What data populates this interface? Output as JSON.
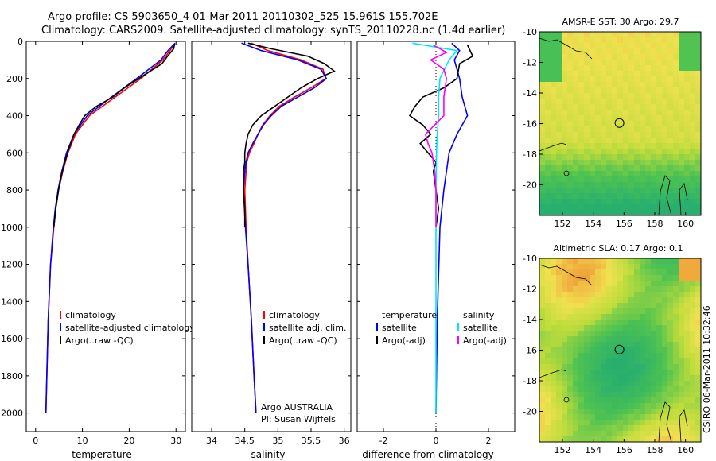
{
  "title_line1": "Argo profile: CS 5903650_4 01-Mar-2011 20110302_525 15.961S 155.702E",
  "title_line2": "Climatology: CARS2009. Satellite-adjusted climatology: synTS_20110228.nc (1.4d earlier)",
  "credit": "CSIRO 06-Mar-2011 10:32:46",
  "colors": {
    "climatology": "#ff0000",
    "satellite": "#0000ff",
    "argo": "#000000",
    "sat_diff_s": "#00e5ff",
    "argo_diff_s": "#ff00ff"
  },
  "chart_data": [
    {
      "type": "line",
      "id": "temperature",
      "xlabel": "temperature",
      "ylabel": "",
      "xlim": [
        -2,
        32
      ],
      "ylim": [
        2100,
        0
      ],
      "xticks": [
        0,
        10,
        20,
        30
      ],
      "yticks": [
        0,
        200,
        400,
        600,
        800,
        1000,
        1200,
        1400,
        1600,
        1800,
        2000
      ],
      "legend": {
        "position": "lower-middle",
        "entries": [
          "climatology",
          "satellite-adjusted climatology",
          "Argo(..raw -QC)"
        ]
      },
      "series": [
        {
          "name": "climatology",
          "color": "#ff0000",
          "depth": [
            20,
            100,
            200,
            300,
            400,
            500,
            600,
            700,
            800,
            900,
            1000,
            1200,
            1500,
            2000
          ],
          "values": [
            29.6,
            27.2,
            22.5,
            17.0,
            11.5,
            8.5,
            6.9,
            5.8,
            4.9,
            4.3,
            3.9,
            3.2,
            2.7,
            2.2
          ]
        },
        {
          "name": "satellite-adjusted climatology",
          "color": "#0000ff",
          "depth": [
            10,
            50,
            100,
            200,
            300,
            400,
            500,
            600,
            700,
            800,
            900,
            1000,
            1200,
            1500,
            2000
          ],
          "values": [
            29.8,
            28.3,
            26.8,
            21.6,
            16.2,
            11.0,
            8.2,
            6.6,
            5.6,
            4.8,
            4.2,
            3.8,
            3.2,
            2.7,
            2.2
          ]
        },
        {
          "name": "Argo(..raw -QC)",
          "color": "#000000",
          "depth": [
            15,
            40,
            80,
            120,
            160,
            200,
            250,
            300,
            350,
            400,
            450,
            500,
            600,
            700,
            800,
            900,
            1000
          ],
          "values": [
            29.7,
            29.5,
            28.2,
            27.0,
            24.5,
            22.0,
            19.0,
            16.5,
            13.0,
            10.5,
            9.3,
            8.2,
            6.8,
            5.7,
            4.9,
            4.3,
            3.9
          ]
        }
      ]
    },
    {
      "type": "line",
      "id": "salinity",
      "xlabel": "salinity",
      "xlim": [
        33.7,
        36.1
      ],
      "ylim": [
        2100,
        0
      ],
      "xticks": [
        34,
        34.5,
        35,
        35.5,
        36
      ],
      "legend": {
        "position": "lower-middle",
        "entries": [
          "climatology",
          "satellite adj. clim.",
          "Argo(..raw -QC)"
        ]
      },
      "annotation": [
        "Argo AUSTRALIA",
        "PI: Susan Wijffels"
      ],
      "series": [
        {
          "name": "climatology",
          "color": "#ff0000",
          "depth": [
            10,
            50,
            100,
            150,
            200,
            250,
            300,
            350,
            400,
            450,
            500,
            550,
            600,
            650,
            700,
            800,
            1000,
            1200,
            1500,
            1800,
            2000
          ],
          "values": [
            34.6,
            34.85,
            35.35,
            35.68,
            35.72,
            35.5,
            35.25,
            35.02,
            34.88,
            34.77,
            34.7,
            34.64,
            34.57,
            34.53,
            34.52,
            34.5,
            34.52,
            34.55,
            34.6,
            34.64,
            34.67
          ]
        },
        {
          "name": "satellite adj. clim.",
          "color": "#0000ff",
          "depth": [
            10,
            50,
            100,
            150,
            200,
            250,
            300,
            350,
            400,
            450,
            500,
            550,
            600,
            650,
            700,
            800,
            1000,
            1200,
            1500,
            1800,
            2000
          ],
          "values": [
            34.45,
            34.75,
            35.3,
            35.65,
            35.73,
            35.55,
            35.3,
            35.05,
            34.9,
            34.78,
            34.7,
            34.62,
            34.55,
            34.52,
            34.5,
            34.48,
            34.51,
            34.55,
            34.6,
            34.64,
            34.67
          ]
        },
        {
          "name": "Argo(..raw -QC)",
          "color": "#000000",
          "depth": [
            10,
            40,
            80,
            120,
            160,
            200,
            250,
            300,
            350,
            400,
            450,
            500,
            550,
            600,
            650,
            700,
            800,
            900,
            1000
          ],
          "values": [
            34.55,
            34.9,
            35.45,
            35.7,
            35.85,
            35.6,
            35.35,
            35.15,
            34.95,
            34.75,
            34.62,
            34.55,
            34.52,
            34.5,
            34.5,
            34.48,
            34.48,
            34.5,
            34.5
          ]
        }
      ]
    },
    {
      "type": "line",
      "id": "difference",
      "xlabel": "difference from climatology",
      "xlim": [
        -3,
        3
      ],
      "ylim": [
        2100,
        0
      ],
      "xticks": [
        -2,
        0,
        2
      ],
      "legend": {
        "position": "lower-middle",
        "entries": [
          "temperature",
          "satellite",
          "Argo(-adj)",
          "salinity",
          "satellite",
          "Argo(-adj)"
        ]
      },
      "series": [
        {
          "name": "temperature satellite",
          "color": "#0000ff",
          "depth": [
            10,
            50,
            100,
            200,
            300,
            400,
            500,
            600,
            700,
            800,
            1000,
            1500,
            2000
          ],
          "values": [
            0.6,
            0.9,
            0.7,
            0.9,
            1.0,
            1.2,
            0.8,
            0.5,
            0.4,
            0.3,
            0.15,
            0.05,
            0.0
          ]
        },
        {
          "name": "temperature Argo(-adj)",
          "color": "#000000",
          "depth": [
            20,
            80,
            120,
            200,
            250,
            300,
            350,
            400,
            450,
            500,
            550,
            600,
            650,
            700,
            800,
            900,
            1000
          ],
          "values": [
            1.2,
            1.4,
            0.9,
            0.8,
            0.3,
            -0.5,
            -0.8,
            -1.0,
            -0.5,
            -0.2,
            -0.6,
            -0.3,
            0.0,
            -0.1,
            0.0,
            0.1,
            0.0
          ]
        },
        {
          "name": "salinity satellite",
          "color": "#00e5ff",
          "depth": [
            10,
            50,
            100,
            200,
            300,
            400,
            500,
            600,
            800,
            1000,
            1500,
            2000
          ],
          "values": [
            -0.9,
            0.8,
            0.5,
            0.15,
            0.1,
            0.1,
            0.05,
            0.02,
            0.0,
            0.0,
            0.0,
            0.0
          ]
        },
        {
          "name": "salinity Argo(-adj)",
          "color": "#ff00ff",
          "depth": [
            20,
            60,
            100,
            150,
            200,
            300,
            400,
            500,
            550,
            600,
            700,
            800,
            900,
            1000
          ],
          "values": [
            -0.1,
            0.4,
            -0.2,
            0.3,
            0.4,
            0.3,
            0.3,
            -0.4,
            -0.3,
            -0.15,
            -0.05,
            0.0,
            0.0,
            0.0
          ]
        }
      ]
    },
    {
      "type": "heatmap",
      "id": "sst_map",
      "title": "AMSR-E SST: 30 Argo: 29.7",
      "xlim": [
        150.5,
        161.0
      ],
      "ylim": [
        -22,
        -10
      ],
      "xticks": [
        152,
        154,
        156,
        158,
        160
      ],
      "yticks": [
        -10,
        -12,
        -14,
        -16,
        -18,
        -20
      ],
      "marker": {
        "lon": 155.702,
        "lat": -15.961
      }
    },
    {
      "type": "heatmap",
      "id": "sla_map",
      "title": "Altimetric SLA: 0.17 Argo: 0.1",
      "xlim": [
        150.5,
        161.0
      ],
      "ylim": [
        -22,
        -10
      ],
      "xticks": [
        152,
        154,
        156,
        158,
        160
      ],
      "yticks": [
        -10,
        -12,
        -14,
        -16,
        -18,
        -20
      ],
      "marker": {
        "lon": 155.702,
        "lat": -15.961
      }
    }
  ]
}
